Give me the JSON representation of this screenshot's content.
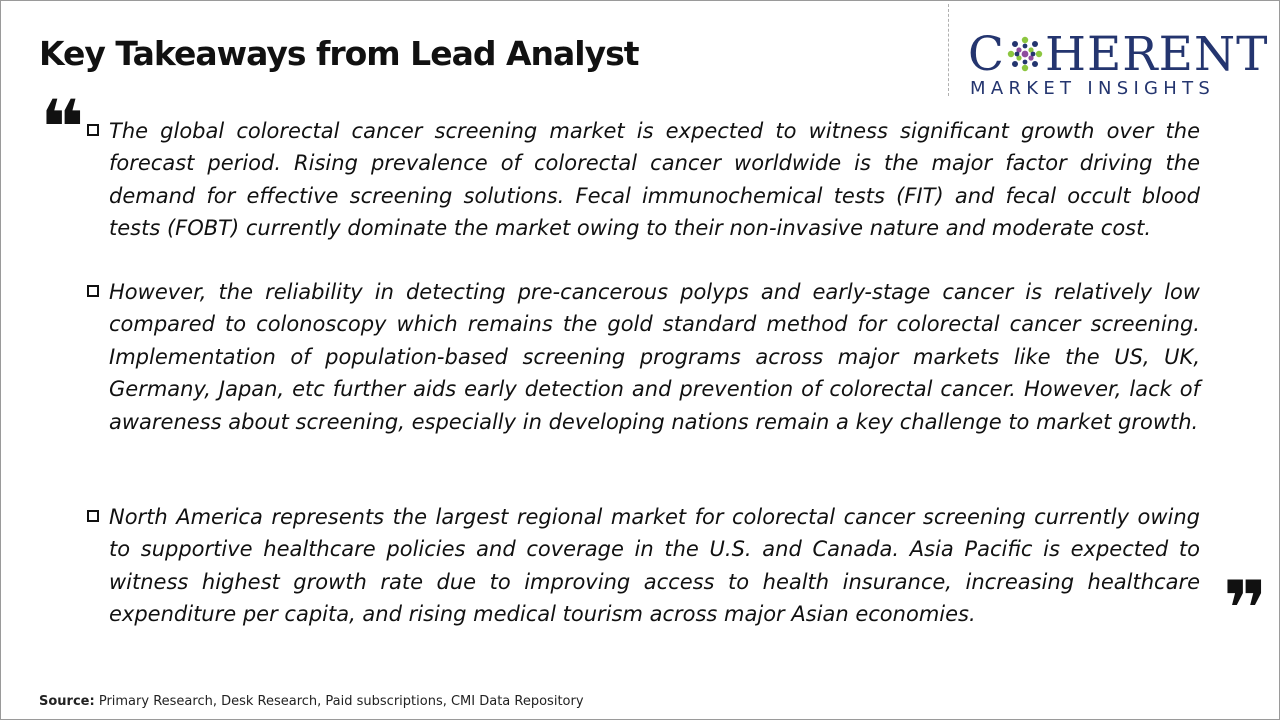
{
  "header": {
    "title": "Key Takeaways from Lead Analyst"
  },
  "logo": {
    "brand_prefix": "C",
    "brand_suffix": "HERENT",
    "tagline": "MARKET INSIGHTS",
    "color": "#24356f"
  },
  "quotes": {
    "open": "❝",
    "close": "❞"
  },
  "points": [
    {
      "text": "The global colorectal cancer screening market is expected to witness significant growth over the forecast period. Rising prevalence of colorectal cancer worldwide is the major factor driving the demand for effective screening solutions. Fecal immunochemical tests (FIT) and fecal occult blood tests (FOBT) currently dominate the market owing to their non-invasive nature and moderate cost."
    },
    {
      "text": "However, the reliability in detecting pre-cancerous polyps and early-stage cancer is relatively low compared to colonoscopy which remains the gold standard method for colorectal cancer screening. Implementation of population-based screening programs across major markets like the US, UK, Germany, Japan, etc further aids early detection and prevention of colorectal cancer. However, lack of awareness about screening, especially in developing nations remain a key challenge to market growth."
    },
    {
      "text": "North America represents the largest regional market for colorectal cancer screening currently owing to supportive healthcare policies and coverage in the U.S. and Canada. Asia Pacific is expected to witness highest growth rate due to improving access to health insurance, increasing healthcare expenditure per capita, and rising medical tourism across major Asian economies."
    }
  ],
  "footer": {
    "source_label": "Source:",
    "source_text": "Primary Research, Desk Research, Paid subscriptions, CMI Data Repository"
  }
}
